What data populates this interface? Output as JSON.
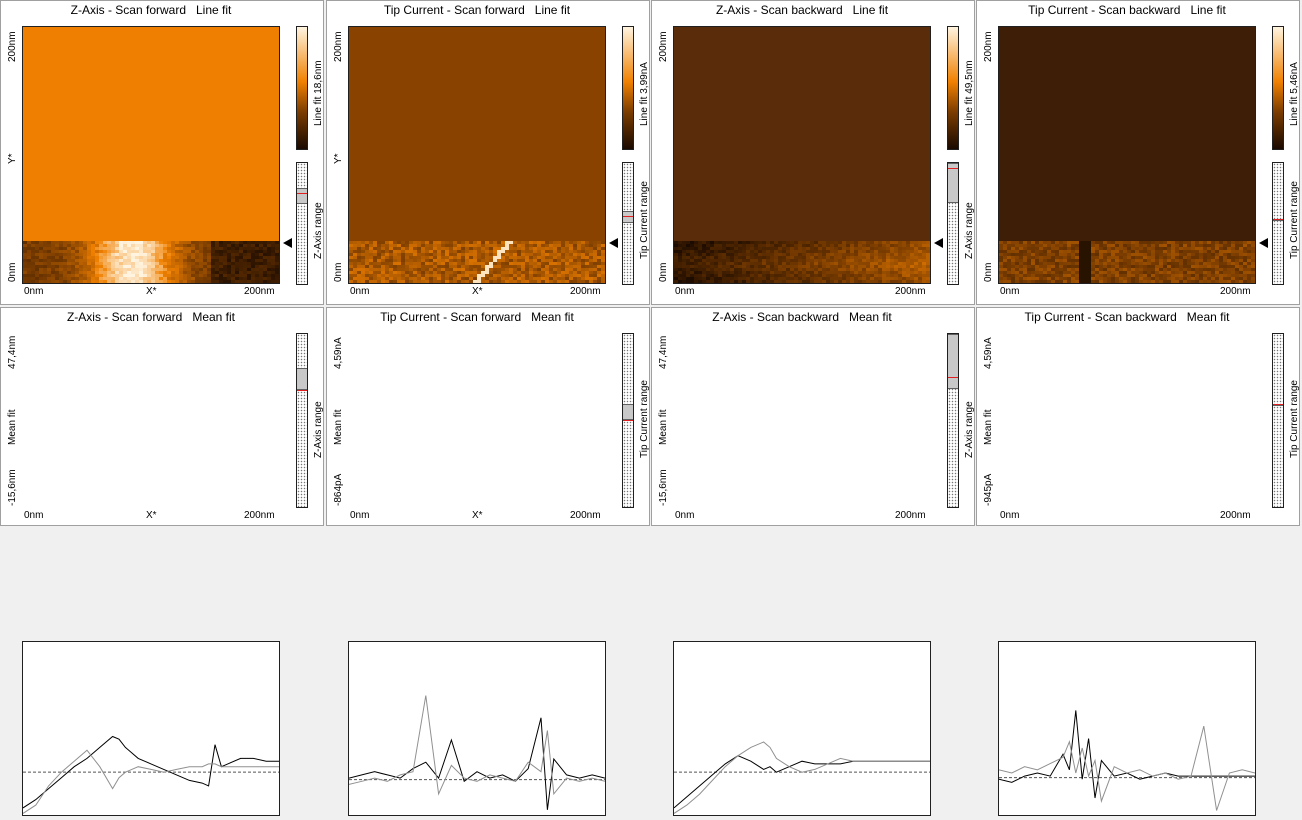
{
  "colors": {
    "cmap_dark": "#1a0a00",
    "cmap_mid": "#7a3c00",
    "cmap_orange": "#f08000",
    "cmap_light": "#fff4e0",
    "trace_fwd": "#000000",
    "trace_bwd": "#909090",
    "marker_red": "#e02020"
  },
  "panels": [
    {
      "kind": "image",
      "title": "Z-Axis - Scan forward   Line fit",
      "y_top": "200nm",
      "y_mid": "Y*",
      "y_bottom": "0nm",
      "x_left": "0nm",
      "x_mid": "X*",
      "x_right": "200nm",
      "colorbar_label": "Line fit 18,6nm",
      "range_label": "Z-Axis range",
      "fill": "#ef7f00",
      "band": "fwd-z"
    },
    {
      "kind": "image",
      "title": "Tip Current - Scan forward   Line fit",
      "y_top": "200nm",
      "y_mid": "Y*",
      "y_bottom": "0nm",
      "x_left": "0nm",
      "x_mid": "X*",
      "x_right": "200nm",
      "colorbar_label": "Line fit 3,99nA",
      "range_label": "Tip Current range",
      "fill": "#8a4200",
      "band": "fwd-i"
    },
    {
      "kind": "image",
      "title": "Z-Axis - Scan backward   Line fit",
      "y_top": "200nm",
      "y_mid": "",
      "y_bottom": "0nm",
      "x_left": "0nm",
      "x_mid": "",
      "x_right": "200nm",
      "colorbar_label": "Line fit 49,5nm",
      "range_label": "Z-Axis range",
      "fill": "#5a2c0a",
      "band": "bwd-z"
    },
    {
      "kind": "image",
      "title": "Tip Current - Scan backward   Line fit",
      "y_top": "200nm",
      "y_mid": "",
      "y_bottom": "0nm",
      "x_left": "0nm",
      "x_mid": "",
      "x_right": "200nm",
      "colorbar_label": "Line fit 5,46nA",
      "range_label": "Tip Current range",
      "fill": "#3e1e06",
      "band": "bwd-i"
    },
    {
      "kind": "line",
      "title": "Z-Axis - Scan forward   Mean fit",
      "y_top": "47,4nm",
      "y_mid": "Mean fit",
      "y_bottom": "-15,6nm",
      "x_left": "0nm",
      "x_mid": "X*",
      "x_right": "200nm",
      "range_label": "Z-Axis range"
    },
    {
      "kind": "line",
      "title": "Tip Current - Scan forward   Mean fit",
      "y_top": "4,59nA",
      "y_mid": "Mean fit",
      "y_bottom": "-864pA",
      "x_left": "0nm",
      "x_mid": "X*",
      "x_right": "200nm",
      "range_label": "Tip Current range"
    },
    {
      "kind": "line",
      "title": "Z-Axis - Scan backward   Mean fit",
      "y_top": "47,4nm",
      "y_mid": "Mean fit",
      "y_bottom": "-15,6nm",
      "x_left": "0nm",
      "x_mid": "",
      "x_right": "200nm",
      "range_label": "Z-Axis range"
    },
    {
      "kind": "line",
      "title": "Tip Current - Scan backward   Mean fit",
      "y_top": "4,59nA",
      "y_mid": "Mean fit",
      "y_bottom": "-945pA",
      "x_left": "0nm",
      "x_mid": "",
      "x_right": "200nm",
      "range_label": "Tip Current range"
    }
  ],
  "chart_data": [
    {
      "type": "line",
      "title": "Z-Axis - Scan forward   Mean fit",
      "xlabel": "X*",
      "ylabel": "Mean fit",
      "xlim": [
        0,
        200
      ],
      "ylim": [
        -15.6,
        47.4
      ],
      "x": [
        0,
        10,
        20,
        30,
        40,
        50,
        60,
        70,
        75,
        80,
        90,
        100,
        110,
        120,
        130,
        140,
        145,
        150,
        155,
        160,
        170,
        180,
        190,
        200
      ],
      "series": [
        {
          "name": "Scan forward",
          "values": [
            -13,
            -10,
            -6,
            -2,
            2,
            5,
            9,
            13,
            12,
            9,
            5,
            3,
            1,
            -1,
            -3,
            -4,
            -5,
            10,
            2,
            3,
            5,
            5,
            4,
            4
          ]
        },
        {
          "name": "Scan backward",
          "values": [
            -15,
            -12,
            -5,
            0,
            4,
            8,
            2,
            -6,
            -2,
            0,
            2,
            1,
            0,
            1,
            2,
            2,
            3,
            3,
            2,
            2,
            2,
            2,
            2,
            2
          ]
        }
      ]
    },
    {
      "type": "line",
      "title": "Tip Current - Scan forward   Mean fit",
      "xlabel": "X*",
      "ylabel": "Mean fit",
      "xlim": [
        0,
        200
      ],
      "ylim": [
        -0.864,
        4.59
      ],
      "x": [
        0,
        10,
        20,
        30,
        40,
        50,
        60,
        70,
        80,
        90,
        100,
        110,
        120,
        130,
        140,
        150,
        155,
        160,
        170,
        180,
        190,
        200
      ],
      "series": [
        {
          "name": "Scan forward",
          "values": [
            0.3,
            0.4,
            0.5,
            0.4,
            0.3,
            0.6,
            0.8,
            0.3,
            1.5,
            0.2,
            0.5,
            0.3,
            0.4,
            0.2,
            0.6,
            2.2,
            -0.7,
            0.9,
            0.4,
            0.3,
            0.4,
            0.3
          ]
        },
        {
          "name": "Scan backward",
          "values": [
            0.1,
            0.2,
            0.3,
            0.2,
            0.4,
            0.5,
            2.9,
            -0.2,
            0.7,
            0.3,
            0.2,
            0.4,
            0.3,
            0.2,
            0.8,
            0.5,
            1.8,
            -0.2,
            0.3,
            0.2,
            0.3,
            0.2
          ]
        }
      ]
    },
    {
      "type": "line",
      "title": "Z-Axis - Scan backward   Mean fit",
      "xlabel": "",
      "ylabel": "Mean fit",
      "xlim": [
        0,
        200
      ],
      "ylim": [
        -15.6,
        47.4
      ],
      "x": [
        0,
        10,
        20,
        30,
        40,
        50,
        60,
        70,
        75,
        80,
        90,
        100,
        110,
        120,
        130,
        140,
        150,
        160,
        170,
        180,
        190,
        200
      ],
      "series": [
        {
          "name": "Scan forward",
          "values": [
            -13,
            -9,
            -5,
            -1,
            3,
            6,
            4,
            1,
            2,
            0,
            2,
            4,
            3,
            3,
            3,
            4,
            4,
            4,
            4,
            4,
            4,
            4
          ]
        },
        {
          "name": "Scan backward",
          "values": [
            -15,
            -12,
            -8,
            -3,
            2,
            6,
            9,
            11,
            9,
            5,
            2,
            0,
            1,
            3,
            5,
            4,
            4,
            4,
            4,
            4,
            4,
            4
          ]
        }
      ]
    },
    {
      "type": "line",
      "title": "Tip Current - Scan backward   Mean fit",
      "xlabel": "",
      "ylabel": "Mean fit",
      "xlim": [
        0,
        200
      ],
      "ylim": [
        -0.945,
        4.59
      ],
      "x": [
        0,
        10,
        20,
        30,
        40,
        50,
        55,
        60,
        65,
        70,
        75,
        80,
        90,
        100,
        110,
        120,
        130,
        140,
        150,
        160,
        170,
        180,
        190,
        200
      ],
      "series": [
        {
          "name": "Scan forward",
          "values": [
            0.2,
            0.1,
            0.3,
            0.4,
            0.3,
            1.0,
            0.5,
            2.4,
            0.2,
            1.5,
            -0.4,
            0.8,
            0.3,
            0.4,
            0.2,
            0.3,
            0.4,
            0.3,
            0.3,
            0.3,
            0.3,
            0.3,
            0.3,
            0.3
          ]
        },
        {
          "name": "Scan backward",
          "values": [
            0.5,
            0.4,
            0.6,
            0.5,
            0.7,
            0.9,
            1.4,
            0.4,
            1.2,
            0.3,
            0.8,
            -0.5,
            0.6,
            0.4,
            0.5,
            0.3,
            0.4,
            0.2,
            0.3,
            1.9,
            -0.8,
            0.4,
            0.5,
            0.4
          ]
        }
      ]
    }
  ]
}
